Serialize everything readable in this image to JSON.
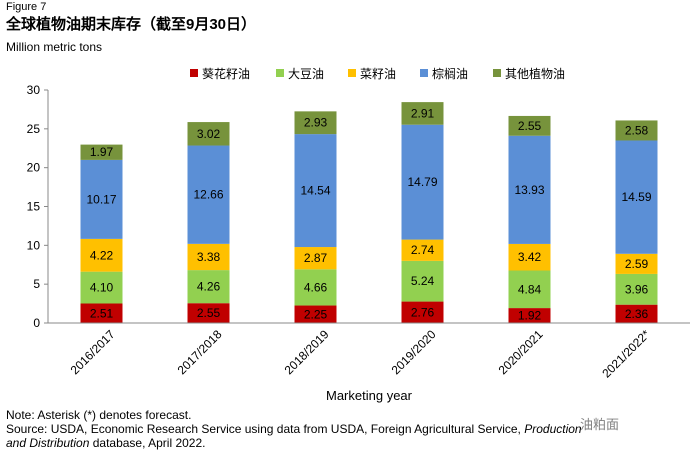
{
  "figure_label": "Figure 7",
  "title": "全球植物油期末库存（截至9月30日）",
  "unit_label": "Million metric tons",
  "colors": {
    "sunflower": "#c00000",
    "soybean": "#92d050",
    "rapeseed": "#ffc000",
    "palm": "#5b8fd6",
    "other": "#77933c"
  },
  "chart_data": {
    "type": "bar",
    "stacked": true,
    "title": "全球植物油期末库存（截至9月30日）",
    "ylabel": "Million metric tons",
    "xlabel": "Marketing year",
    "ylim": [
      0,
      30
    ],
    "yticks": [
      0,
      5,
      10,
      15,
      20,
      25,
      30
    ],
    "categories": [
      "2016/2017",
      "2017/2018",
      "2018/2019",
      "2019/2020",
      "2020/2021",
      "2021/2022*"
    ],
    "series": [
      {
        "name": "葵花籽油",
        "key": "sunflower",
        "values": [
          2.51,
          2.55,
          2.25,
          2.76,
          1.92,
          2.36
        ],
        "labels": [
          "2.51",
          "2.55",
          "2.25",
          "2.76",
          "1.92",
          "2.36"
        ]
      },
      {
        "name": "大豆油",
        "key": "soybean",
        "values": [
          4.1,
          4.26,
          4.66,
          5.24,
          4.84,
          3.96
        ],
        "labels": [
          "4.10",
          "4.26",
          "4.66",
          "5.24",
          "4.84",
          "3.96"
        ]
      },
      {
        "name": "菜籽油",
        "key": "rapeseed",
        "values": [
          4.22,
          3.38,
          2.87,
          2.74,
          3.42,
          2.59
        ],
        "labels": [
          "4.22",
          "3.38",
          "2.87",
          "2.74",
          "3.42",
          "2.59"
        ]
      },
      {
        "name": "棕榈油",
        "key": "palm",
        "values": [
          10.17,
          12.66,
          14.54,
          14.79,
          13.93,
          14.59
        ],
        "labels": [
          "10.17",
          "12.66",
          "14.54",
          "14.79",
          "13.93",
          "14.59"
        ]
      },
      {
        "name": "其他植物油",
        "key": "other",
        "values": [
          1.97,
          3.02,
          2.93,
          2.91,
          2.55,
          2.58
        ],
        "labels": [
          "1.97",
          "3.02",
          "2.93",
          "2.91",
          "2.55",
          "2.58"
        ]
      }
    ],
    "legend_position": "top"
  },
  "notes": {
    "line1": "Note: Asterisk (*) denotes forecast.",
    "line2_prefix": "Source: USDA, Economic Research Service using data from USDA, Foreign Agricultural Service, ",
    "line2_italic": "Production",
    "line3_italic": "and Distribution",
    "line3_suffix": " database, April 2022."
  },
  "watermark": "油粕面"
}
